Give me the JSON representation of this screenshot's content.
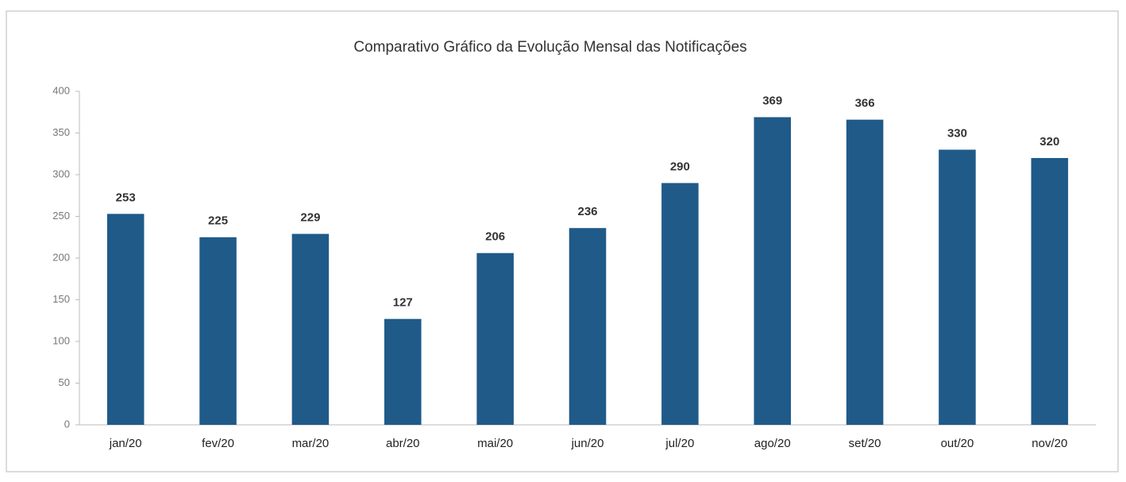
{
  "chart_data": {
    "type": "bar",
    "title": "Comparativo Gráfico da Evolução Mensal das Notificações",
    "categories": [
      "jan/20",
      "fev/20",
      "mar/20",
      "abr/20",
      "mai/20",
      "jun/20",
      "jul/20",
      "ago/20",
      "set/20",
      "out/20",
      "nov/20"
    ],
    "values": [
      253,
      225,
      229,
      127,
      206,
      236,
      290,
      369,
      366,
      330,
      320
    ],
    "color": "#1f5a89",
    "ylim": [
      0,
      400
    ],
    "yticks": [
      0,
      50,
      100,
      150,
      200,
      250,
      300,
      350,
      400
    ],
    "grid": false
  }
}
